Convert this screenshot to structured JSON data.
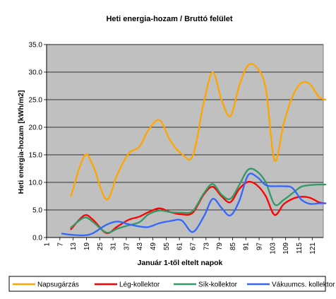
{
  "chart_data": {
    "type": "line",
    "title": "Heti energia-hozam / Bruttó felület",
    "xlabel": "Január 1-től eltelt napok",
    "ylabel": "Heti energia-hozam [kWh/m2]",
    "ylim": [
      0,
      35
    ],
    "yticks": [
      "0.0",
      "5.0",
      "10.0",
      "15.0",
      "20.0",
      "25.0",
      "30.0",
      "35.0"
    ],
    "xlim": [
      1,
      126
    ],
    "xticks": [
      1,
      7,
      13,
      19,
      25,
      31,
      37,
      43,
      49,
      55,
      61,
      67,
      73,
      79,
      85,
      91,
      97,
      103,
      109,
      115,
      121
    ],
    "grid": "horizontal",
    "legend_position": "bottom",
    "x": [
      8,
      12,
      18,
      22,
      28,
      33,
      38,
      43,
      47,
      52,
      57,
      62,
      67,
      72,
      76,
      80,
      84,
      88,
      92,
      96,
      100,
      104,
      108,
      112,
      116,
      120,
      124,
      127
    ],
    "series": [
      {
        "name": "Napsugárzás",
        "color": "#FFA500",
        "values": [
          null,
          7.5,
          14.8,
          13.0,
          6.9,
          11.5,
          15.2,
          16.5,
          19.5,
          21.3,
          17.5,
          15.2,
          14.8,
          24.5,
          30.0,
          25.0,
          22.0,
          27.5,
          31.2,
          30.8,
          27.0,
          14.0,
          20.5,
          25.5,
          28.0,
          27.8,
          25.5,
          25.0
        ]
      },
      {
        "name": "Lég-kollektor",
        "color": "#FF0000",
        "values": [
          null,
          1.5,
          4.0,
          3.2,
          0.8,
          2.0,
          3.2,
          3.8,
          4.6,
          5.3,
          4.6,
          4.2,
          4.5,
          7.8,
          9.2,
          7.5,
          6.4,
          8.8,
          10.1,
          9.5,
          7.5,
          4.1,
          6.0,
          7.0,
          7.4,
          7.2,
          6.4,
          6.2
        ]
      },
      {
        "name": "Sík-kollektor",
        "color": "#339966",
        "values": [
          null,
          1.8,
          3.6,
          2.8,
          0.9,
          1.6,
          2.2,
          2.8,
          4.2,
          4.9,
          4.6,
          4.5,
          4.8,
          8.0,
          9.7,
          7.8,
          7.0,
          9.5,
          12.3,
          12.0,
          10.0,
          6.0,
          6.8,
          8.0,
          9.2,
          9.5,
          9.6,
          9.6
        ]
      },
      {
        "name": "Vákuumcs. kollektor",
        "color": "#3366FF",
        "values": [
          0.7,
          0.5,
          0.4,
          0.8,
          2.3,
          2.9,
          2.4,
          2.0,
          1.9,
          2.6,
          3.0,
          3.1,
          1.0,
          3.8,
          7.0,
          5.4,
          4.0,
          6.6,
          11.3,
          11.0,
          9.5,
          9.3,
          9.3,
          9.0,
          6.9,
          6.1,
          6.2,
          6.2
        ]
      }
    ]
  }
}
